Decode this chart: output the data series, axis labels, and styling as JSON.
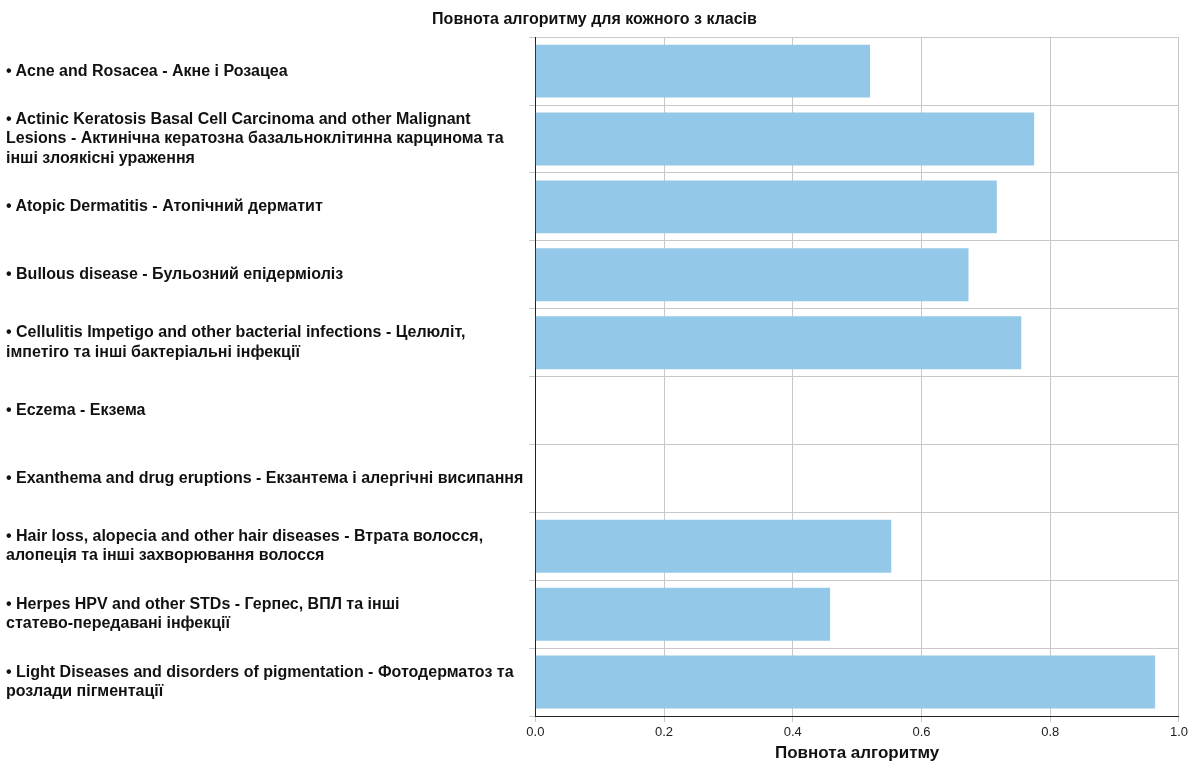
{
  "chart_data": {
    "type": "bar",
    "orientation": "horizontal",
    "title": "Повнота алгоритму для кожного з класів",
    "xlabel": "Повнота алгоритму",
    "categories": [
      "• Acne and Rosacea - Акне і Розацеа",
      "• Actinic Keratosis Basal Cell Carcinoma and other Malignant Lesions - Актинічна кератозна базальноклітинна карцинома та інші злоякісні ураження",
      "• Atopic Dermatitis - Атопічний дерматит",
      "• Bullous disease - Бульозний епідерміоліз",
      "• Cellulitis Impetigo and other bacterial infections - Целюліт, імпетіго та інші бактеріальні інфекції",
      "• Eczema - Екзема",
      "• Exanthema and drug eruptions - Екзантема і алергічні висипання",
      "• Hair loss, alopecia and other hair diseases - Втрата волосся, алопеція та інші захворювання волосся",
      "• Herpes HPV and other STDs - Герпес, ВПЛ та інші статево-передавані інфекції",
      "• Light Diseases and disorders of pigmentation - Фотодерматоз та розлади пігментації"
    ],
    "values": [
      0.52,
      0.775,
      0.717,
      0.673,
      0.755,
      0,
      0,
      0.553,
      0.458,
      0.963
    ],
    "color": "#93c8e8",
    "xlim": [
      0,
      1
    ],
    "xticks": [
      {
        "value": 0,
        "label": "0.0"
      },
      {
        "value": 0.2,
        "label": "0.2"
      },
      {
        "value": 0.4,
        "label": "0.4"
      },
      {
        "value": 0.6,
        "label": "0.6"
      },
      {
        "value": 0.8,
        "label": "0.8"
      },
      {
        "value": 1,
        "label": "1.0"
      }
    ],
    "grid": true
  }
}
